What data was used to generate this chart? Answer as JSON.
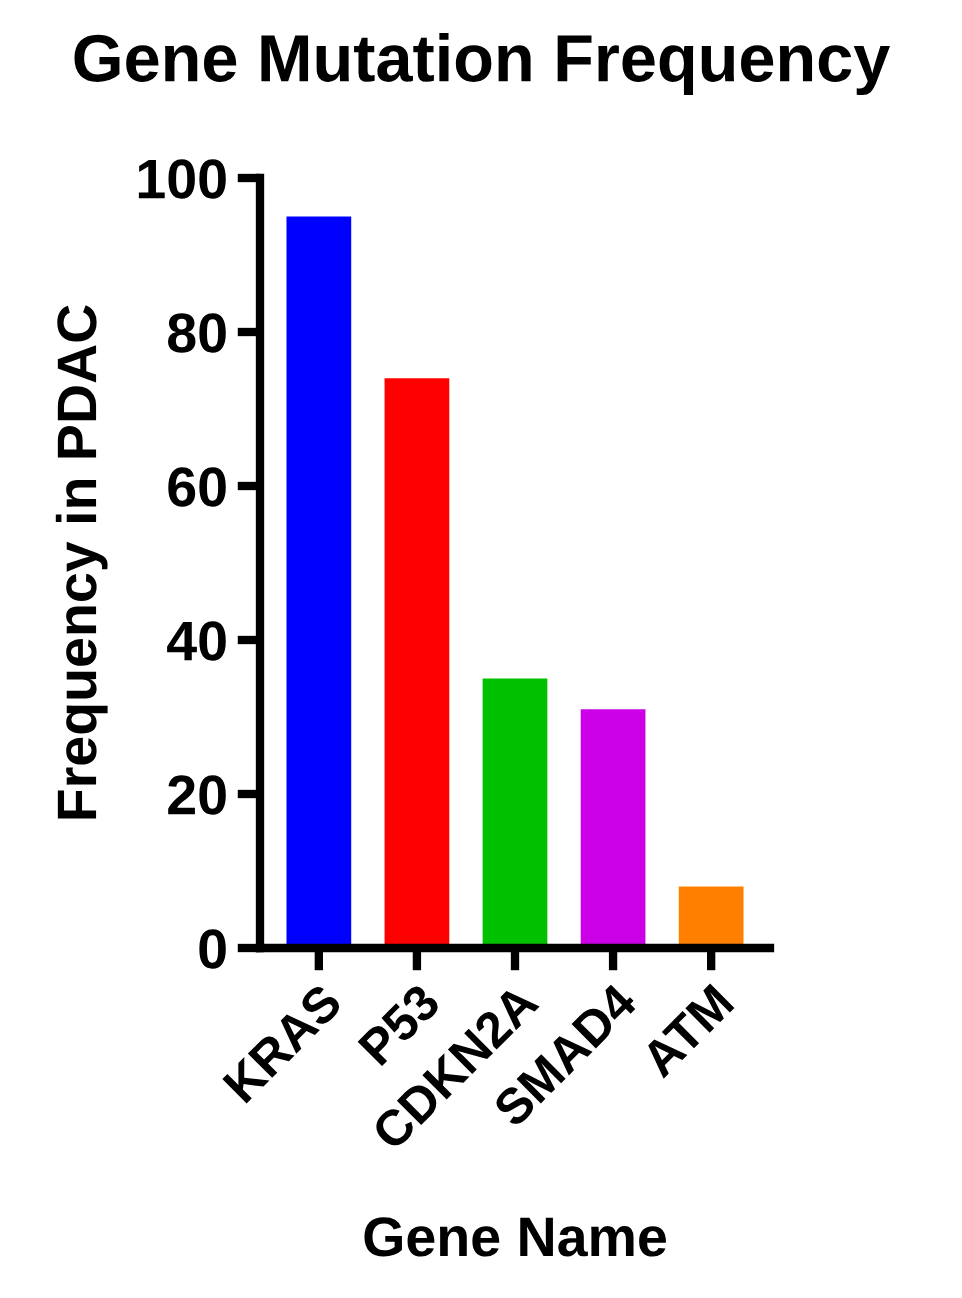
{
  "chart_data": {
    "type": "bar",
    "title": "Gene Mutation Frequency",
    "xlabel": "Gene Name",
    "ylabel": "Frequency in PDAC",
    "categories": [
      "KRAS",
      "P53",
      "CDKN2A",
      "SMAD4",
      "ATM"
    ],
    "values": [
      95,
      74,
      35,
      31,
      8
    ],
    "colors": [
      "#0000ff",
      "#ff0000",
      "#00c000",
      "#cc00e6",
      "#ff8000"
    ],
    "ylim": [
      0,
      100
    ],
    "yticks": [
      0,
      20,
      40,
      60,
      80,
      100
    ],
    "grid": false,
    "legend": false
  }
}
